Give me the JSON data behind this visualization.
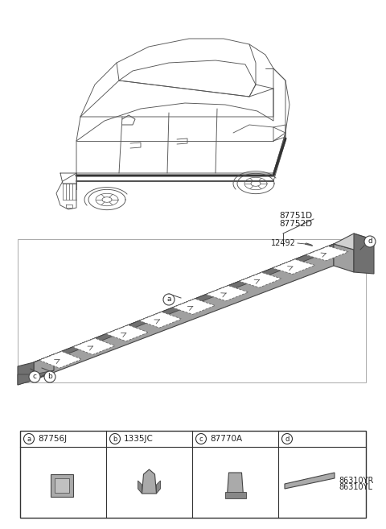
{
  "bg_color": "#ffffff",
  "fig_width": 4.8,
  "fig_height": 6.57,
  "dpi": 100,
  "part_labels": {
    "a": "87756J",
    "b": "1335JC",
    "c": "87770A",
    "d_line1": "86310YR",
    "d_line2": "86310YL"
  },
  "part_numbers_top": {
    "main": "87751D",
    "sub": "87752D"
  },
  "screw_label": "12492",
  "line_color": "#444444",
  "text_color": "#222222",
  "gray_light": "#d0d0d0",
  "gray_mid": "#a0a0a0",
  "gray_dark": "#707070",
  "car_line_color": "#555555"
}
